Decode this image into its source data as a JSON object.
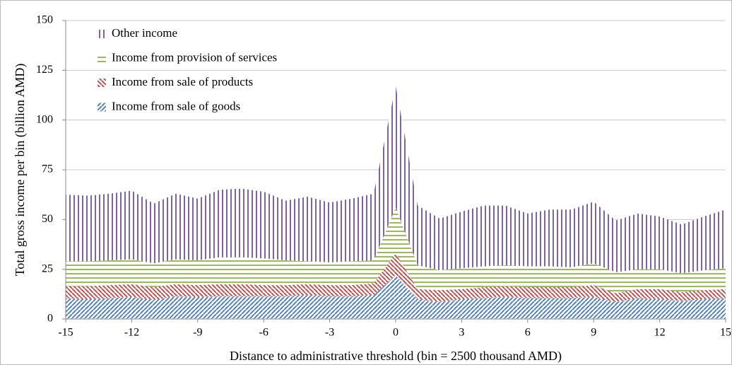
{
  "chart_data": {
    "type": "stacked-area",
    "xlabel": "Distance to administrative threshold (bin = 2500 thousand AMD)",
    "ylabel": "Total gross income per bin (billion AMD)",
    "x": [
      -15,
      -14,
      -13,
      -12,
      -11,
      -10,
      -9,
      -8,
      -7,
      -6,
      -5,
      -4,
      -3,
      -2,
      -1,
      0,
      1,
      2,
      3,
      4,
      5,
      6,
      7,
      8,
      9,
      10,
      11,
      12,
      13,
      14,
      15
    ],
    "xlim": [
      -15,
      15
    ],
    "xticks": [
      -15,
      -12,
      -9,
      -6,
      -3,
      0,
      3,
      6,
      9,
      12,
      15
    ],
    "ylim": [
      0,
      150
    ],
    "yticks": [
      0,
      25,
      50,
      75,
      100,
      125,
      150
    ],
    "grid": true,
    "legend": "upper left",
    "series": [
      {
        "name": "Income from sale of goods",
        "color": "#4f81bd",
        "hatch": "diagonal-up",
        "values": [
          10.5,
          10,
          10.5,
          11,
          9.5,
          11.5,
          11,
          11.5,
          11.5,
          11.5,
          11.5,
          12,
          11.5,
          11.5,
          12,
          22,
          10,
          8.5,
          10,
          10.5,
          11,
          10.5,
          10.5,
          10.5,
          11,
          8.5,
          10.5,
          10,
          9,
          10,
          10.5
        ]
      },
      {
        "name": "Income from sale of products",
        "color": "#c0504d",
        "hatch": "diagonal-down",
        "values": [
          6,
          6.5,
          6.5,
          6.5,
          6.5,
          6,
          6,
          6,
          6,
          5.5,
          5.5,
          5.5,
          5.5,
          5.5,
          6,
          11,
          5,
          6,
          5,
          5.5,
          5.5,
          5.5,
          5.5,
          5.5,
          6,
          4.5,
          4.5,
          5,
          4.5,
          4.5,
          4.5
        ]
      },
      {
        "name": "Income from provision of services",
        "color": "#9bbb59",
        "hatch": "horizontal",
        "values": [
          12.5,
          12.5,
          12.5,
          12.5,
          12,
          12.5,
          12.5,
          13.5,
          13.5,
          13.5,
          12.5,
          11.5,
          11.5,
          12,
          11.5,
          23,
          12,
          10,
          10.5,
          10.5,
          10.5,
          10.5,
          10.5,
          10,
          11,
          10.5,
          10,
          10,
          9.5,
          10,
          10.5
        ]
      },
      {
        "name": "Other income",
        "color": "#8064a2",
        "hatch": "vertical",
        "values": [
          33.5,
          33,
          33.5,
          34.5,
          30,
          33,
          31,
          34,
          34.5,
          33.5,
          30,
          32.5,
          30,
          31.5,
          33.5,
          61,
          30,
          26,
          28.5,
          30.5,
          30,
          26.5,
          28.5,
          29,
          31,
          26,
          28,
          26.5,
          24.5,
          27,
          29.5
        ]
      }
    ]
  }
}
